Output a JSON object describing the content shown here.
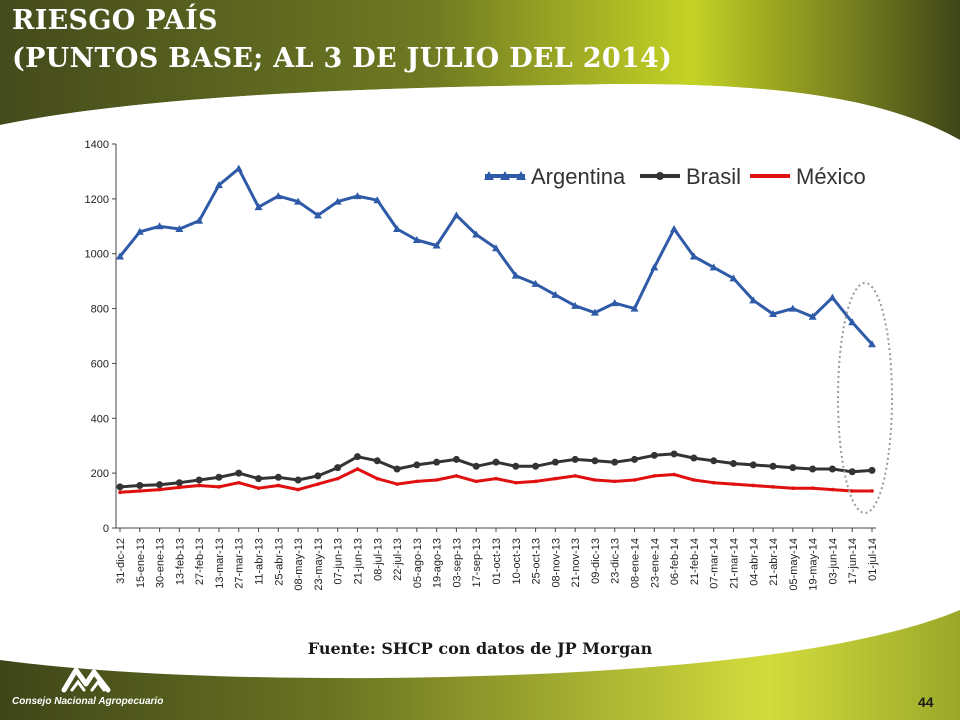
{
  "slide": {
    "title_line1": "RIESGO PAÍS",
    "title_line2": "(PUNTOS BASE; AL 3 DE JULIO DEL 2014)",
    "source": "Fuente: SHCP con datos de JP Morgan",
    "org_name": "Consejo Nacional Agropecuario",
    "page_number": "44"
  },
  "colors": {
    "banner_dark": "#4a4f1e",
    "banner_light": "#c8d42a",
    "argentina": "#2e5aa8",
    "brasil": "#333333",
    "mexico": "#e01010"
  },
  "chart_data": {
    "type": "line",
    "title": "",
    "xlabel": "",
    "ylabel": "",
    "ylim": [
      0,
      1400
    ],
    "yticks": [
      0,
      200,
      400,
      600,
      800,
      1000,
      1200,
      1400
    ],
    "grid": false,
    "legend_position": "top-right",
    "annotation": "dotted ellipse highlighting the most recent data",
    "x": [
      "31-dic-12",
      "15-ene-13",
      "30-ene-13",
      "13-feb-13",
      "27-feb-13",
      "13-mar-13",
      "27-mar-13",
      "11-abr-13",
      "25-abr-13",
      "08-may-13",
      "23-may-13",
      "07-jun-13",
      "21-jun-13",
      "08-jul-13",
      "22-jul-13",
      "05-ago-13",
      "19-ago-13",
      "03-sep-13",
      "17-sep-13",
      "01-oct-13",
      "10-oct-13",
      "25-oct-13",
      "08-nov-13",
      "21-nov-13",
      "09-dic-13",
      "23-dic-13",
      "08-ene-14",
      "23-ene-14",
      "06-feb-14",
      "21-feb-14",
      "07-mar-14",
      "21-mar-14",
      "04-abr-14",
      "21-abr-14",
      "05-may-14",
      "19-may-14",
      "03-jun-14",
      "17-jun-14",
      "01-jul-14"
    ],
    "series": [
      {
        "name": "Argentina",
        "values": [
          990,
          1080,
          1100,
          1090,
          1120,
          1250,
          1310,
          1170,
          1210,
          1190,
          1140,
          1190,
          1210,
          1195,
          1090,
          1050,
          1030,
          1140,
          1070,
          1020,
          920,
          890,
          850,
          810,
          785,
          820,
          800,
          950,
          1090,
          990,
          950,
          910,
          830,
          780,
          800,
          770,
          840,
          750,
          670
        ]
      },
      {
        "name": "Brasil",
        "values": [
          150,
          155,
          158,
          165,
          175,
          185,
          200,
          180,
          185,
          175,
          190,
          220,
          260,
          245,
          215,
          230,
          240,
          250,
          225,
          240,
          225,
          225,
          240,
          250,
          245,
          240,
          250,
          265,
          270,
          255,
          245,
          235,
          230,
          225,
          220,
          215,
          215,
          205,
          210
        ]
      },
      {
        "name": "México",
        "values": [
          130,
          135,
          140,
          148,
          155,
          150,
          165,
          145,
          155,
          140,
          160,
          180,
          215,
          180,
          160,
          170,
          175,
          190,
          170,
          180,
          165,
          170,
          180,
          190,
          175,
          170,
          175,
          190,
          195,
          175,
          165,
          160,
          155,
          150,
          145,
          145,
          140,
          135,
          135
        ]
      }
    ]
  }
}
